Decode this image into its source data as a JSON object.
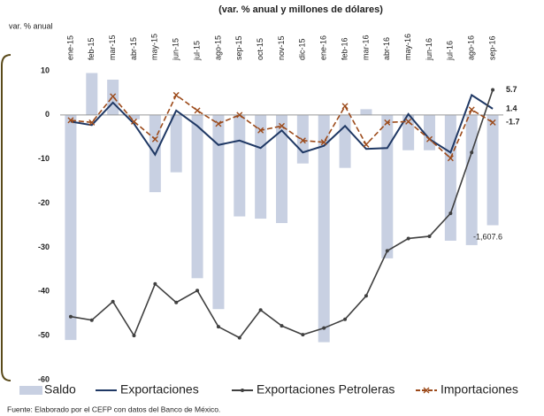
{
  "chart_data": {
    "type": "combo",
    "subtitle": "(var. % anual y millones de dólares)",
    "y_label": "var. % anual",
    "source": "Fuente: Elaborado por el CEFP con datos del Banco de México.",
    "annotations": [
      "-1,607.6"
    ],
    "categories": [
      "ene-15",
      "feb-15",
      "mar-15",
      "abr-15",
      "may-15",
      "jun-15",
      "jul-15",
      "ago-15",
      "sep-15",
      "oct-15",
      "nov-15",
      "dic-15",
      "ene-16",
      "feb-16",
      "mar-16",
      "abr-16",
      "may-16",
      "jun-16",
      "jul-16",
      "ago-16",
      "sep-16"
    ],
    "ylim": [
      -60,
      10
    ],
    "yticks": [
      10,
      0,
      -10,
      -20,
      -30,
      -40,
      -50,
      -60
    ],
    "series": [
      {
        "name": "Saldo",
        "style": "bar",
        "color": "#c8d0e2",
        "values": [
          -51,
          9.5,
          8,
          -1,
          -17.5,
          -13,
          -37,
          -44,
          -23,
          -23.5,
          -24.5,
          -11,
          -51.5,
          -12,
          1.3,
          -32.5,
          -8,
          -8,
          -28.5,
          -29.5,
          -25
        ]
      },
      {
        "name": "Exportaciones",
        "style": "line",
        "color": "#1f3864",
        "end_label": true,
        "values": [
          -1.5,
          -2.3,
          2.8,
          -2,
          -9,
          1,
          -2.5,
          -6.8,
          -5.8,
          -7.5,
          -3.5,
          -8.5,
          -7,
          -2.5,
          -7.7,
          -7.5,
          0.2,
          -5.5,
          -8.5,
          4.5,
          1.4
        ]
      },
      {
        "name": "Exportaciones Petroleras",
        "style": "line-dot",
        "color": "#404040",
        "end_label": true,
        "values": [
          -45.7,
          -46.5,
          -42.3,
          -50,
          -38.3,
          -42.5,
          -39.8,
          -48,
          -50.5,
          -44.2,
          -47.8,
          -49.8,
          -48.3,
          -46.3,
          -41,
          -30.8,
          -28,
          -27.5,
          -22.3,
          -8.5,
          5.7
        ]
      },
      {
        "name": "Importaciones",
        "style": "dashed-x",
        "color": "#9c4a1a",
        "end_label": true,
        "values": [
          -1.2,
          -1.7,
          4.2,
          -1.5,
          -5.5,
          4.5,
          1,
          -2,
          0,
          -3.5,
          -2.5,
          -5.8,
          -6.2,
          2,
          -6.7,
          -1.7,
          -1.5,
          -5.5,
          -9.8,
          1.2,
          -1.7
        ]
      }
    ]
  }
}
